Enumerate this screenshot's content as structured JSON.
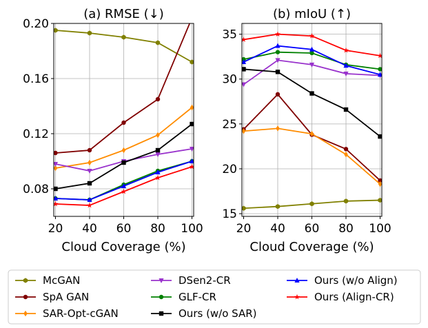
{
  "chart_data": [
    {
      "type": "line",
      "title": "(a) RMSE (↓)",
      "xlabel": "Cloud Coverage (%)",
      "ylabel": "",
      "x": [
        20,
        40,
        60,
        80,
        100
      ],
      "xlim": [
        19,
        101
      ],
      "ylim": [
        0.06,
        0.2
      ],
      "xticks": [
        "20",
        "40",
        "60",
        "80",
        "100"
      ],
      "yticks": [
        0.08,
        0.12,
        0.16,
        0.2
      ],
      "ytick_labels": [
        "0.08",
        "0.12",
        "0.16",
        "0.20"
      ],
      "grid": true,
      "series": [
        {
          "name": "McGAN",
          "values": [
            0.195,
            0.193,
            0.19,
            0.186,
            0.172
          ]
        },
        {
          "name": "SpA GAN",
          "values": [
            0.106,
            0.108,
            0.128,
            0.145,
            0.204
          ]
        },
        {
          "name": "SAR-Opt-cGAN",
          "values": [
            0.095,
            0.099,
            0.108,
            0.119,
            0.139
          ]
        },
        {
          "name": "DSen2-CR",
          "values": [
            0.098,
            0.093,
            0.1,
            0.105,
            0.109
          ]
        },
        {
          "name": "GLF-CR",
          "values": [
            0.073,
            0.072,
            0.083,
            0.093,
            0.1
          ]
        },
        {
          "name": "Ours (w/o SAR)",
          "values": [
            0.08,
            0.084,
            0.099,
            0.108,
            0.127
          ]
        },
        {
          "name": "Ours (w/o Align)",
          "values": [
            0.073,
            0.072,
            0.082,
            0.092,
            0.1
          ]
        },
        {
          "name": "Ours (Align-CR)",
          "values": [
            0.069,
            0.068,
            0.078,
            0.088,
            0.096
          ]
        }
      ]
    },
    {
      "type": "line",
      "title": "(b) mIoU (↑)",
      "xlabel": "Cloud Coverage (%)",
      "ylabel": "",
      "x": [
        20,
        40,
        60,
        80,
        100
      ],
      "xlim": [
        19,
        101
      ],
      "ylim": [
        14.7,
        36.2
      ],
      "xticks": [
        "20",
        "40",
        "60",
        "80",
        "100"
      ],
      "yticks": [
        15,
        20,
        25,
        30,
        35
      ],
      "ytick_labels": [
        "15",
        "20",
        "25",
        "30",
        "35"
      ],
      "grid": true,
      "series": [
        {
          "name": "McGAN",
          "values": [
            15.6,
            15.8,
            16.1,
            16.4,
            16.5
          ]
        },
        {
          "name": "SpA GAN",
          "values": [
            24.4,
            28.3,
            23.8,
            22.2,
            18.7
          ]
        },
        {
          "name": "SAR-Opt-cGAN",
          "values": [
            24.2,
            24.5,
            23.9,
            21.6,
            18.3
          ]
        },
        {
          "name": "DSen2-CR",
          "values": [
            29.4,
            32.1,
            31.6,
            30.6,
            30.4
          ]
        },
        {
          "name": "GLF-CR",
          "values": [
            32.2,
            33.0,
            32.9,
            31.6,
            31.1
          ]
        },
        {
          "name": "Ours (w/o SAR)",
          "values": [
            31.1,
            30.8,
            28.4,
            26.6,
            23.6
          ]
        },
        {
          "name": "Ours (w/o Align)",
          "values": [
            31.9,
            33.7,
            33.3,
            31.5,
            30.5
          ]
        },
        {
          "name": "Ours (Align-CR)",
          "values": [
            34.4,
            35.0,
            34.8,
            33.2,
            32.6
          ]
        }
      ]
    }
  ],
  "series_styles": [
    {
      "color": "#808000",
      "marker": "hexagon"
    },
    {
      "color": "#800000",
      "marker": "circle"
    },
    {
      "color": "#ff8c00",
      "marker": "diamond"
    },
    {
      "color": "#9932cc",
      "marker": "triangle-down"
    },
    {
      "color": "#008000",
      "marker": "circle"
    },
    {
      "color": "#000000",
      "marker": "square"
    },
    {
      "color": "#0000ff",
      "marker": "triangle-up"
    },
    {
      "color": "#ff0000",
      "marker": "star"
    }
  ],
  "legend": {
    "placement": "bottom",
    "entries": [
      "McGAN",
      "SpA GAN",
      "SAR-Opt-cGAN",
      "DSen2-CR",
      "GLF-CR",
      "Ours (w/o SAR)",
      "Ours (w/o Align)",
      "Ours (Align-CR)"
    ]
  }
}
